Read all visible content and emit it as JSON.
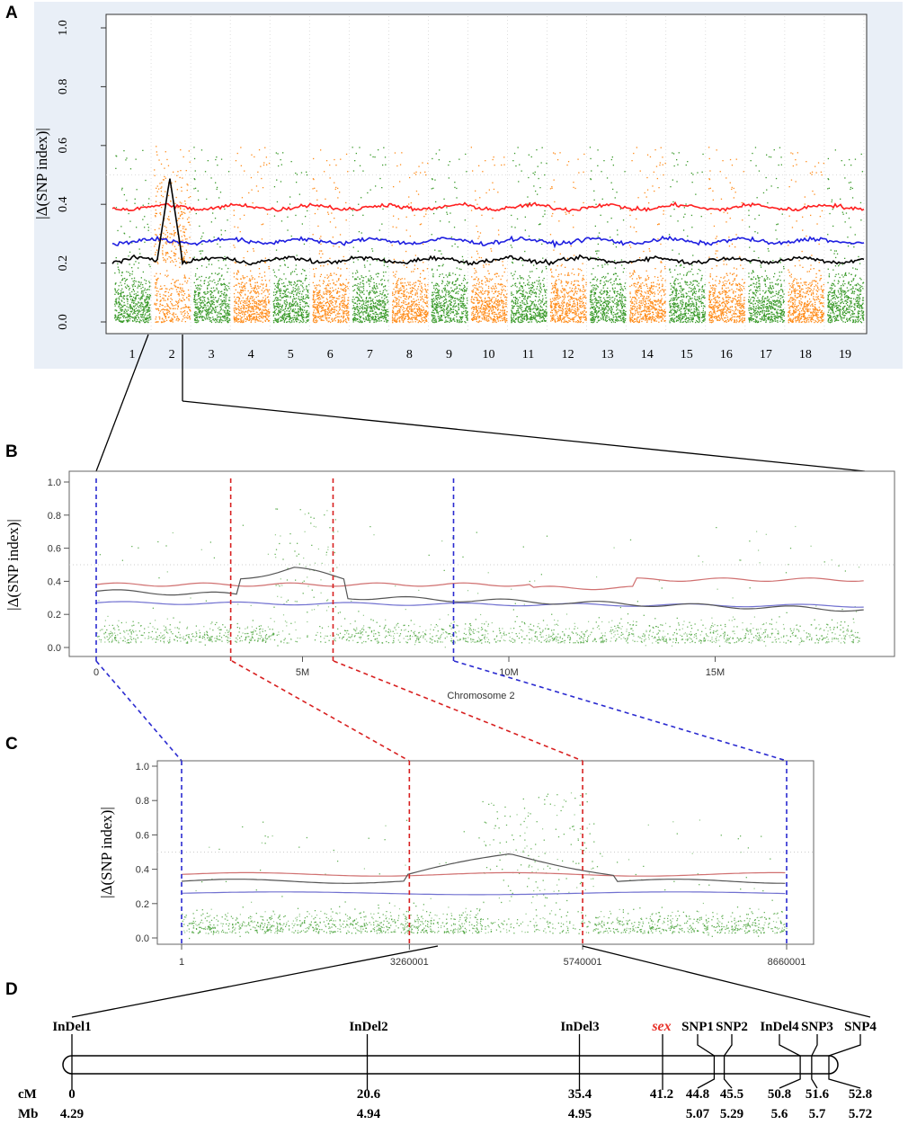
{
  "figure": {
    "panels": [
      "A",
      "B",
      "C",
      "D"
    ]
  },
  "chart_data": [
    {
      "panel": "A",
      "type": "scatter",
      "ylabel": "|Δ(SNP index)|",
      "xlabel": "",
      "ylim": [
        0,
        1.0
      ],
      "yticks": [
        "0.0",
        "0.2",
        "0.4",
        "0.6",
        "0.8",
        "1.0"
      ],
      "categories": [
        "1",
        "2",
        "3",
        "4",
        "5",
        "6",
        "7",
        "8",
        "9",
        "10",
        "11",
        "12",
        "13",
        "14",
        "15",
        "16",
        "17",
        "18",
        "19"
      ],
      "point_colors": [
        "#3a9a2a",
        "#ff8c1a"
      ],
      "threshold_lines": [
        {
          "name": "red threshold",
          "color": "#ff1f1f",
          "mean": 0.39
        },
        {
          "name": "blue threshold",
          "color": "#1f1fe0",
          "mean": 0.275
        },
        {
          "name": "delta SNP index",
          "color": "#000000",
          "mean": 0.21,
          "peak_chromosome": "2",
          "peak": 0.49
        }
      ],
      "background": "#e9eff7"
    },
    {
      "panel": "B",
      "type": "scatter",
      "ylabel": "|Δ(SNP index)|",
      "xlabel": "Chromosome 2",
      "ylim": [
        0,
        1.0
      ],
      "xlim": [
        0,
        18.7
      ],
      "yticks": [
        "0.0",
        "0.2",
        "0.4",
        "0.6",
        "0.8",
        "1.0"
      ],
      "xticks": [
        {
          "value": 0,
          "label": "0"
        },
        {
          "value": 5,
          "label": "5M"
        },
        {
          "value": 10,
          "label": "10M"
        },
        {
          "value": 15,
          "label": "15M"
        }
      ],
      "highlight_lines": [
        {
          "value": 0.0,
          "color": "#2a2ad0"
        },
        {
          "value": 3.26,
          "color": "#d82020"
        },
        {
          "value": 5.74,
          "color": "#d82020"
        },
        {
          "value": 8.66,
          "color": "#2a2ad0"
        }
      ]
    },
    {
      "panel": "C",
      "type": "scatter",
      "ylabel": "|Δ(SNP index)|",
      "xlabel": "",
      "ylim": [
        0,
        1.0
      ],
      "xlim": [
        0,
        9000000
      ],
      "yticks": [
        "0.0",
        "0.2",
        "0.4",
        "0.6",
        "0.8",
        "1.0"
      ],
      "xticks": [
        {
          "value": 1,
          "label": "1"
        },
        {
          "value": 3260001,
          "label": "3260001"
        },
        {
          "value": 5740001,
          "label": "5740001"
        },
        {
          "value": 8660001,
          "label": "8660001"
        }
      ]
    },
    {
      "panel": "D",
      "type": "table",
      "row_labels": [
        "cM",
        "Mb"
      ],
      "markers": [
        {
          "name": "InDel1",
          "cM": "0",
          "Mb": "4.29",
          "highlight": false
        },
        {
          "name": "InDel2",
          "cM": "20.6",
          "Mb": "4.94",
          "highlight": false
        },
        {
          "name": "InDel3",
          "cM": "35.4",
          "Mb": "4.95",
          "highlight": false
        },
        {
          "name": "sex",
          "cM": "41.2",
          "Mb": "",
          "highlight": true
        },
        {
          "name": "SNP1",
          "cM": "44.8",
          "Mb": "5.07",
          "highlight": false
        },
        {
          "name": "SNP2",
          "cM": "45.5",
          "Mb": "5.29",
          "highlight": false
        },
        {
          "name": "InDel4",
          "cM": "50.8",
          "Mb": "5.6",
          "highlight": false
        },
        {
          "name": "SNP3",
          "cM": "51.6",
          "Mb": "5.7",
          "highlight": false
        },
        {
          "name": "SNP4",
          "cM": "52.8",
          "Mb": "5.72",
          "highlight": false
        }
      ]
    }
  ]
}
